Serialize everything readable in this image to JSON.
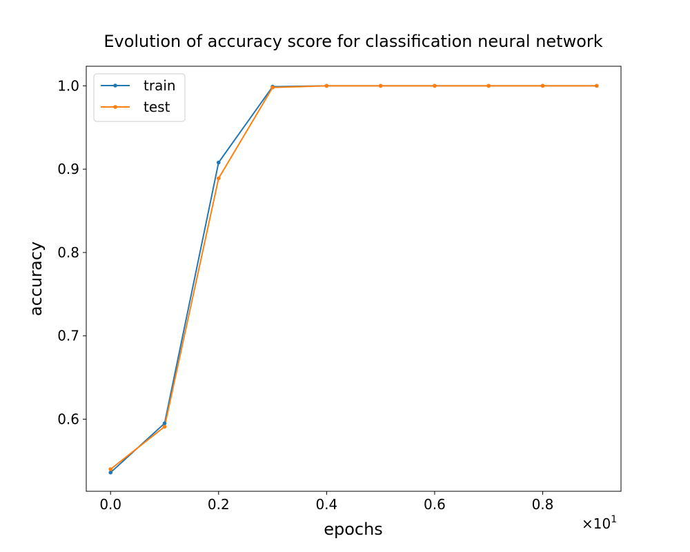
{
  "chart_data": {
    "type": "line",
    "title": "Evolution of accuracy score for classification neural network",
    "xlabel": "epochs",
    "ylabel": "accuracy",
    "x_scale_exponent_label": "×10",
    "x_scale_exponent_power": "1",
    "x": [
      0,
      1,
      2,
      3,
      4,
      5,
      6,
      7,
      8,
      9
    ],
    "xlim": [
      -0.45,
      9.45
    ],
    "ylim": [
      0.5135,
      1.0235
    ],
    "xticks": [
      0,
      2,
      4,
      6,
      8
    ],
    "xtick_labels": [
      "0.0",
      "0.2",
      "0.4",
      "0.6",
      "0.8"
    ],
    "yticks": [
      0.6,
      0.7,
      0.8,
      0.9,
      1.0
    ],
    "ytick_labels": [
      "0.6",
      "0.7",
      "0.8",
      "0.9",
      "1.0"
    ],
    "grid": false,
    "legend_position": "top-left",
    "series": [
      {
        "name": "train",
        "color": "#1f77b4",
        "marker": "dot",
        "values": [
          0.536,
          0.595,
          0.908,
          0.999,
          1.0,
          1.0,
          1.0,
          1.0,
          1.0,
          1.0
        ]
      },
      {
        "name": "test",
        "color": "#ff7f0e",
        "marker": "dot",
        "values": [
          0.54,
          0.591,
          0.889,
          0.998,
          1.0,
          1.0,
          1.0,
          1.0,
          1.0,
          1.0
        ]
      }
    ]
  }
}
